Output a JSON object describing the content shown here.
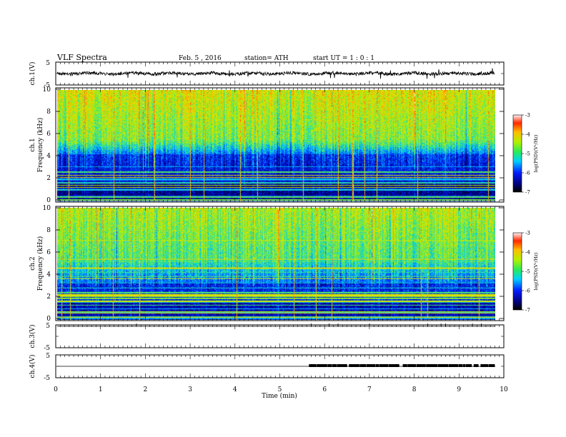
{
  "header": {
    "title": "VLF Spectra",
    "date": "Feb. 5 , 2016",
    "station": "station= ATH",
    "start": "start UT = 1 : 0 : 1"
  },
  "chart_data": [
    {
      "type": "line",
      "name": "ch1-waveform",
      "ylabel": "ch.1(V)",
      "ylim": [
        -5,
        5
      ],
      "yticks": [
        "5",
        "-5"
      ],
      "xlim": [
        0,
        10
      ],
      "data_extent_min": 9.8,
      "baseline_v": 0
    },
    {
      "type": "heatmap",
      "name": "ch1-spectrogram",
      "ylabel": "ch.1 Frequency (kHz)",
      "ylabel_line1": "ch.1",
      "ylabel_line2": "Frequency (kHz)",
      "ylim": [
        0,
        10
      ],
      "yticks": [
        "0",
        "2",
        "4",
        "6",
        "8",
        "10"
      ],
      "xlim": [
        0,
        10
      ],
      "data_extent_min": 9.8,
      "colorbar": {
        "range": [
          -7,
          -3
        ],
        "ticks": [
          "-7",
          "-6",
          "-5",
          "-4",
          "-3"
        ],
        "label": "log(PSD)(V²/Hz)"
      }
    },
    {
      "type": "heatmap",
      "name": "ch2-spectrogram",
      "ylabel": "ch.2 Frequency (kHz)",
      "ylabel_line1": "ch.2",
      "ylabel_line2": "Frequency (kHz)",
      "ylim": [
        0,
        10
      ],
      "yticks": [
        "0",
        "2",
        "4",
        "6",
        "8",
        "10"
      ],
      "xlim": [
        0,
        10
      ],
      "data_extent_min": 9.8,
      "colorbar": {
        "range": [
          -7,
          -3
        ],
        "ticks": [
          "-7",
          "-6",
          "-5",
          "-4",
          "-3"
        ],
        "label": "log(PSD)(V²/Hz)"
      }
    },
    {
      "type": "line",
      "name": "ch3-waveform",
      "ylabel": "ch.3(V)",
      "ylim": [
        -5,
        5
      ],
      "yticks": [
        "5",
        "-5"
      ],
      "xlim": [
        0,
        10
      ],
      "baseline_v": 5
    },
    {
      "type": "line",
      "name": "ch4-waveform",
      "ylabel": "ch.4(V)",
      "ylim": [
        -5,
        5
      ],
      "yticks": [
        "5",
        "-5"
      ],
      "xlim": [
        0,
        10
      ],
      "baseline_v": 0,
      "burst_start_min": 5.65,
      "burst_end_min": 9.8
    }
  ],
  "xaxis": {
    "label": "Time (min)",
    "ticks": [
      "0",
      "1",
      "2",
      "3",
      "4",
      "5",
      "6",
      "7",
      "8",
      "9",
      "10"
    ],
    "range": [
      0,
      10
    ]
  }
}
